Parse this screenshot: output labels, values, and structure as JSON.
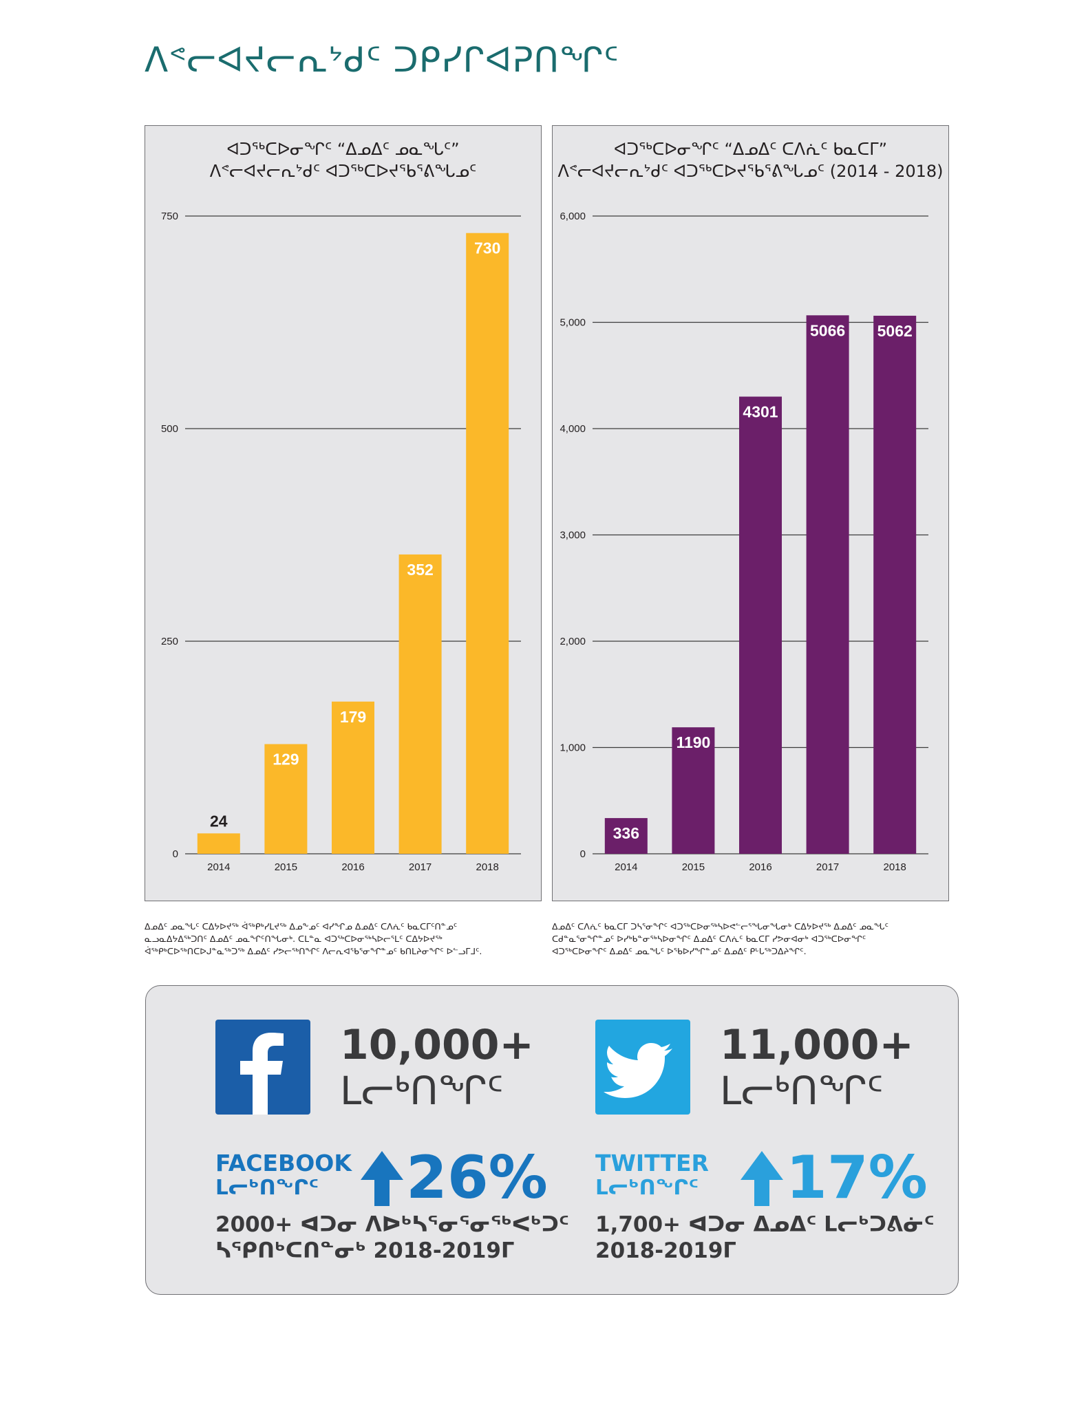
{
  "page": {
    "title": "ᐱᕝᓕᐊᔪᓕᕆᔾᑯᑦ ᑐᑭᓯᒋᐊᕈᑎᖏᑦ"
  },
  "chart_data": [
    {
      "type": "bar",
      "title_lines": [
        "ᐊᑐᖅᑕᐅᓂᖏᑦ “ᐃᓄᐃᑦ ᓄᓇᖓᑦ”",
        "ᐱᕝᓕᐊᔪᓕᕆᔾᑯᑦ ᐊᑐᖅᑕᐅᔪᖃᕐᕕᖓᓄᑦ"
      ],
      "categories": [
        "2014",
        "2015",
        "2016",
        "2017",
        "2018"
      ],
      "values": [
        24,
        129,
        179,
        352,
        730
      ],
      "ylim": [
        0,
        750
      ],
      "yticks": [
        0,
        250,
        500,
        750
      ],
      "ytick_labels": [
        "0",
        "250",
        "500",
        "750"
      ],
      "color": "#fbb829",
      "grid": true
    },
    {
      "type": "bar",
      "title_lines": [
        "ᐊᑐᖅᑕᐅᓂᖏᑦ “ᐃᓄᐃᑦ ᑕᐱᕇᑦ ᑲᓇᑕᒥ”",
        "ᐱᕝᓕᐊᔪᓕᕆᔾᑯᑦ ᐊᑐᖅᑕᐅᔪᖃᕐᕕᖓᓄᑦ (2014 - 2018)"
      ],
      "categories": [
        "2014",
        "2015",
        "2016",
        "2017",
        "2018"
      ],
      "values": [
        336,
        1190,
        4301,
        5066,
        5062
      ],
      "ylim": [
        0,
        6000
      ],
      "yticks": [
        0,
        1000,
        2000,
        3000,
        4000,
        5000,
        6000
      ],
      "ytick_labels": [
        "0",
        "1,000",
        "2,000",
        "3,000",
        "4,000",
        "5,000",
        "6,000"
      ],
      "color": "#6b1f69",
      "grid": true
    }
  ],
  "captions": {
    "left": [
      "ᐃᓄᐃᑦ ᓄᓇᖓᑦ ᑕᐃᔭᐅᔪᖅ ᐋᖅᑭᒃᓯᒪᔪᖅ ᐃᓄᖕᓄᑦ ᐊᓯᖏᓄ ᐃᓄᐃᑦ ᑕᐱᕇᑦ ᑲᓇᑕᒥᑦᑎᓐᓄᑦ",
      "ᓇᓗᓇᐃᔭᐃᖅᑐᑎᑦ ᐃᓄᐃᑦ ᓄᓇᖏᑦᑎᖓᓂᒃ. ᑕᒪᓐᓇ ᐊᑐᖅᑕᐅᓂᖅᓴᐅᓕᕐᒪᑦ ᑕᐃᔭᐅᔪᖅ",
      "ᐋᖅᑭᒃᑕᐅᖅᑎᑕᐅᒍᓐᓇᖅᑐᖅ ᐃᓄᐃᑦ ᓯᕗᓕᖅᑎᖏᑦ ᐱᓕᕆᐊᖃᕐᓂᖏᓐᓄᑦ ᑲᑎᒪᔨᓂᖏᑦ ᐅᓪᓗᒥᒧᑦ."
    ],
    "right": [
      "ᐃᓄᐃᑦ ᑕᐱᕇᑦ ᑲᓇᑕᒥ ᑐᓴᕐᓂᖏᑦ ᐊᑐᖅᑕᐅᓂᖅᓴᐅᕙᓪᓕᕐᖓᓂᖓᓂᒃ ᑕᐃᔭᐅᔪᖅ ᐃᓄᐃᑦ ᓄᓇᖓᑦ",
      "ᑕᑯᓐᓇᕐᓂᖏᓐᓄᑦ ᐅᓯᒃᑲᓐᓂᖅᓴᐅᓂᖏᑦ ᐃᓄᐃᑦ ᑕᐱᕇᑦ ᑲᓇᑕᒥ ᓯᕗᓂᐊᓂᒃ ᐊᑐᖅᑕᐅᓂᖏᑦ",
      "ᐊᑐᖅᑕᐅᓂᖏᑦ ᐃᓄᐃᑦ ᓄᓇᖓᑦ ᐅᖃᐅᓯᖏᓐᓄᑦ ᐃᓄᐃᑦ ᑭᒡᒐᖅᑐᐃᔨᖏᑦ."
    ]
  },
  "social": {
    "facebook": {
      "icon": "facebook-logo-icon",
      "count": "10,000+",
      "count_label": "ᒪᓕᒃᑎᖏᑦ",
      "name": "FACEBOOK",
      "name_sub": "ᒪᓕᒃᑎᖏᑦ",
      "arrow_icon": "up-arrow-icon",
      "percent": "26%",
      "growth_line1": "2000+ ᐊᑐᓂ ᐱᐅᒃᓴᕐᓂᕐᓂᖅᐸᒃᑐᑦ",
      "growth_line2": "ᓴᕿᑎᒃᑕᑎᓐᓂᒃ 2018-2019ᒥ",
      "color": "#1875be",
      "logo_color": "#1b5ea8"
    },
    "twitter": {
      "icon": "twitter-logo-icon",
      "count": "11,000+",
      "count_label": "ᒪᓕᒃᑎᖏᑦ",
      "name": "TWITTER",
      "name_sub": "ᒪᓕᒃᑎᖏᑦ",
      "arrow_icon": "up-arrow-icon",
      "percent": "17%",
      "growth_line1": "1,700+ ᐊᑐᓂ ᐃᓄᐃᑦ ᒪᓕᒃᑐᕕᓃᑦ",
      "growth_line2": "2018-2019ᒥ",
      "color": "#2aa0dc",
      "logo_color": "#22a6e0"
    }
  }
}
